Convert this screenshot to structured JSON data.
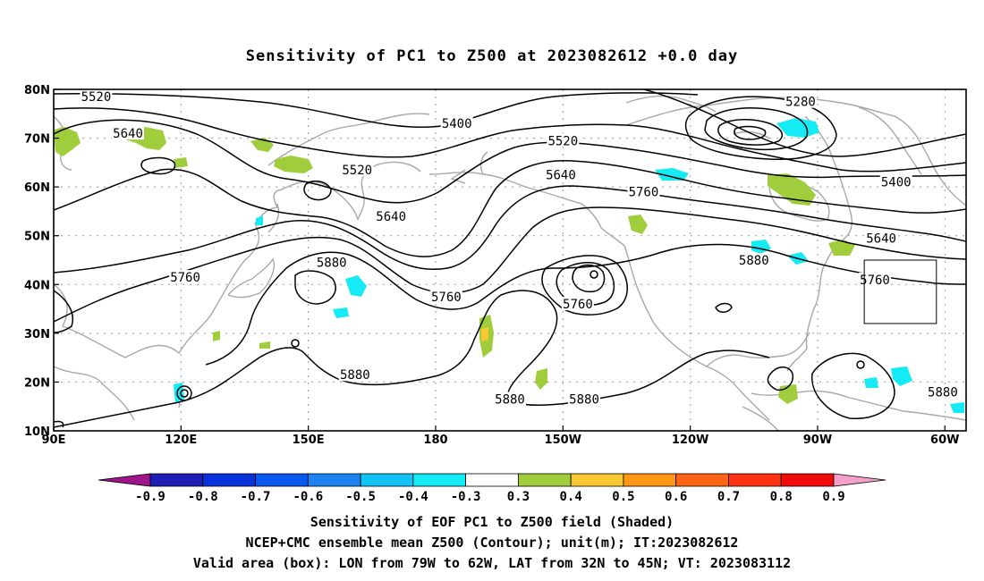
{
  "chart_data": {
    "type": "map",
    "title": "Sensitivity of PC1 to Z500 at 2023082612 +0.0 day",
    "region": {
      "lon_range": [
        90,
        305
      ],
      "lat_range": [
        10,
        80
      ]
    },
    "x_tick_labels": [
      "90E",
      "120E",
      "150E",
      "180",
      "150W",
      "120W",
      "90W",
      "60W"
    ],
    "x_tick_lons": [
      90,
      120,
      150,
      180,
      210,
      240,
      270,
      300
    ],
    "y_tick_labels": [
      "10N",
      "20N",
      "30N",
      "40N",
      "50N",
      "60N",
      "70N",
      "80N"
    ],
    "y_tick_lats": [
      10,
      20,
      30,
      40,
      50,
      60,
      70,
      80
    ],
    "grid": "dotted",
    "contour_labels": [
      {
        "text": "5520",
        "lon": 100,
        "lat": 78.5
      },
      {
        "text": "5640",
        "lon": 107.5,
        "lat": 71
      },
      {
        "text": "5400",
        "lon": 185,
        "lat": 73
      },
      {
        "text": "5520",
        "lon": 161.5,
        "lat": 63.5
      },
      {
        "text": "5520",
        "lon": 210,
        "lat": 69.5
      },
      {
        "text": "5280",
        "lon": 266,
        "lat": 77.5
      },
      {
        "text": "5640",
        "lon": 209.5,
        "lat": 62.5
      },
      {
        "text": "5760",
        "lon": 229,
        "lat": 59
      },
      {
        "text": "5400",
        "lon": 288.5,
        "lat": 61
      },
      {
        "text": "5640",
        "lon": 169.5,
        "lat": 54
      },
      {
        "text": "5640",
        "lon": 285,
        "lat": 49.5
      },
      {
        "text": "5880",
        "lon": 155.5,
        "lat": 44.5
      },
      {
        "text": "5880",
        "lon": 255,
        "lat": 45
      },
      {
        "text": "5760",
        "lon": 283.5,
        "lat": 41
      },
      {
        "text": "5760",
        "lon": 121,
        "lat": 41.5
      },
      {
        "text": "5760",
        "lon": 182.5,
        "lat": 37.5
      },
      {
        "text": "5760",
        "lon": 213.5,
        "lat": 36
      },
      {
        "text": "5880",
        "lon": 161,
        "lat": 21.5
      },
      {
        "text": "5880",
        "lon": 197.5,
        "lat": 16.5
      },
      {
        "text": "5880",
        "lon": 215,
        "lat": 16.5
      },
      {
        "text": "5880",
        "lon": 299.5,
        "lat": 18
      }
    ],
    "valid_box": {
      "lon_min": 281,
      "lon_max": 298,
      "lat_min": 32,
      "lat_max": 45
    },
    "colorbar": {
      "labels": [
        "-0.9",
        "-0.8",
        "-0.7",
        "-0.6",
        "-0.5",
        "-0.4",
        "-0.3",
        "0.3",
        "0.4",
        "0.5",
        "0.6",
        "0.7",
        "0.8",
        "0.9"
      ],
      "colors": [
        "#a0148c",
        "#1e1eb4",
        "#0a32dc",
        "#0a5af0",
        "#1e82f0",
        "#14c3f5",
        "#14ebf5",
        "#ffffff",
        "#a0cd3c",
        "#fac832",
        "#ff9614",
        "#ff6414",
        "#ff3214",
        "#f00a0a",
        "#f5a0c8"
      ]
    },
    "shading_colors": {
      "positive_low": "#a0cd3c",
      "positive_mid": "#fac832",
      "negative_low": "#14ebf5",
      "negative_mid": "#14c3f5"
    },
    "caption": [
      "Sensitivity of EOF PC1 to Z500 field (Shaded)",
      "NCEP+CMC ensemble mean Z500 (Contour); unit(m); IT:2023082612",
      "Valid area (box): LON from 79W to 62W, LAT from 32N to 45N; VT: 2023083112"
    ]
  }
}
